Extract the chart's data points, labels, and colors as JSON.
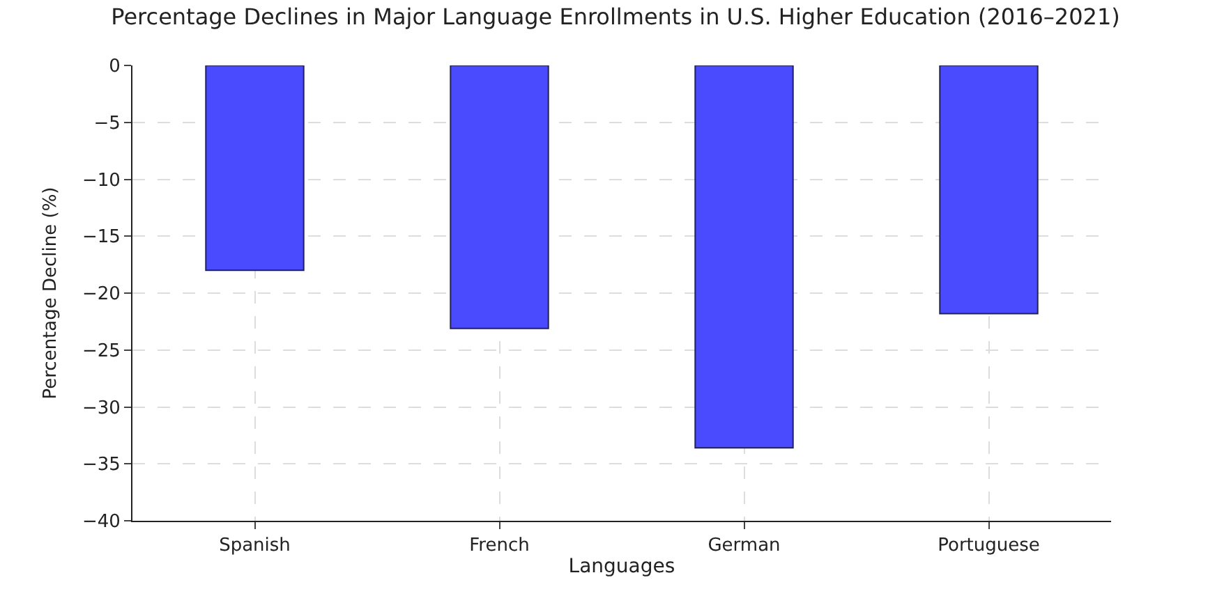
{
  "chart_data": {
    "type": "bar",
    "title": "Percentage Declines in Major Language Enrollments in U.S. Higher Education (2016–2021)",
    "xlabel": "Languages",
    "ylabel": "Percentage Decline (%)",
    "categories": [
      "Spanish",
      "French",
      "German",
      "Portuguese"
    ],
    "values": [
      -18,
      -23.1,
      -33.6,
      -21.8
    ],
    "color": "#4a4aff",
    "ylim": [
      -40,
      0
    ],
    "yticks": [
      -40,
      -35,
      -30,
      -25,
      -20,
      -15,
      -10,
      -5,
      0
    ],
    "grid": true
  }
}
